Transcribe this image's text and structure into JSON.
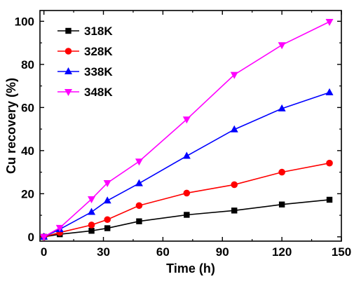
{
  "chart_data": {
    "type": "line",
    "title": "",
    "xlabel": "Time (h)",
    "ylabel": "Cu recovery (%)",
    "xlim": [
      -2,
      150
    ],
    "ylim": [
      -2,
      105
    ],
    "xticks": [
      0,
      30,
      60,
      90,
      120,
      150
    ],
    "yticks": [
      0,
      20,
      40,
      60,
      80,
      100
    ],
    "grid": false,
    "legend_position": "top-left",
    "x": [
      0,
      8,
      24,
      32,
      48,
      72,
      96,
      120,
      144
    ],
    "series": [
      {
        "name": "318K",
        "color": "#000000",
        "marker": "square",
        "values": [
          0,
          1.2,
          2.8,
          4.0,
          7.2,
          10.2,
          12.2,
          15.0,
          17.2
        ]
      },
      {
        "name": "328K",
        "color": "#ff0000",
        "marker": "circle",
        "values": [
          0,
          2.0,
          5.5,
          8.0,
          14.5,
          20.3,
          24.2,
          30.0,
          34.2
        ]
      },
      {
        "name": "338K",
        "color": "#0000ff",
        "marker": "triangle-up",
        "values": [
          0,
          3.5,
          11.5,
          16.8,
          24.8,
          37.5,
          49.8,
          59.5,
          67.0
        ]
      },
      {
        "name": "348K",
        "color": "#ff00ff",
        "marker": "triangle-down",
        "values": [
          0,
          4.2,
          17.5,
          25.0,
          35.0,
          54.5,
          75.2,
          89.0,
          99.8
        ]
      }
    ]
  }
}
